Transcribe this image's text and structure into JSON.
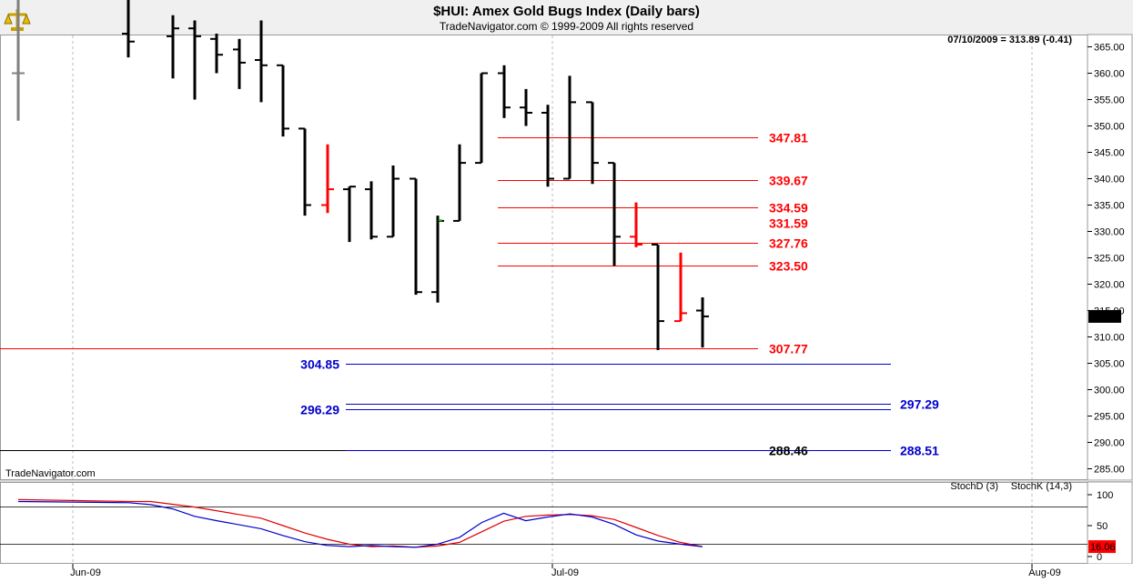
{
  "header": {
    "title": "$HUI:  Amex Gold Bugs Index  (Daily bars)",
    "subtitle": "TradeNavigator.com © 1999-2009 All rights reserved"
  },
  "chart_data": [
    {
      "type": "bar",
      "subtype": "ohlc",
      "title": "$HUI:  Amex Gold Bugs Index  (Daily bars)",
      "last_quote": "07/10/2009 = 313.89 (-0.41)",
      "last_value_label": "313.89",
      "watermark": "TradeNavigator.com",
      "ylim": [
        283,
        370
      ],
      "y_ticks": [
        "285.00",
        "290.00",
        "295.00",
        "300.00",
        "305.00",
        "310.00",
        "315.00",
        "320.00",
        "325.00",
        "330.00",
        "335.00",
        "340.00",
        "345.00",
        "350.00",
        "355.00",
        "360.00",
        "365.00"
      ],
      "x_tick_labels": [
        "Jun-09",
        "Jul-09",
        "Aug-09"
      ],
      "grid": "vertical dashed at month starts",
      "bars": [
        {
          "slot": 0,
          "o": 360.0,
          "h": 375.0,
          "l": 351.0,
          "c": 360.0,
          "color": "#808080"
        },
        {
          "slot": 5,
          "o": 367.5,
          "h": 375.0,
          "l": 363.0,
          "c": 366.0,
          "color": "#000000"
        },
        {
          "slot": 7,
          "o": 367.0,
          "h": 371.0,
          "l": 359.0,
          "c": 368.5,
          "color": "#000000"
        },
        {
          "slot": 8,
          "o": 368.5,
          "h": 370.0,
          "l": 355.0,
          "c": 367.0,
          "color": "#000000"
        },
        {
          "slot": 9,
          "o": 366.5,
          "h": 367.5,
          "l": 360.0,
          "c": 363.5,
          "color": "#000000"
        },
        {
          "slot": 10,
          "o": 364.5,
          "h": 366.5,
          "l": 357.0,
          "c": 362.0,
          "color": "#000000"
        },
        {
          "slot": 11,
          "o": 362.5,
          "h": 370.0,
          "l": 354.5,
          "c": 361.5,
          "color": "#000000"
        },
        {
          "slot": 12,
          "o": 361.5,
          "h": 361.5,
          "l": 348.0,
          "c": 349.5,
          "color": "#000000"
        },
        {
          "slot": 13,
          "o": 349.5,
          "h": 349.5,
          "l": 333.0,
          "c": 335.0,
          "color": "#000000"
        },
        {
          "slot": 14,
          "o": 335.0,
          "h": 346.5,
          "l": 333.5,
          "c": 338.0,
          "color": "#ff0000"
        },
        {
          "slot": 15,
          "o": 338.0,
          "h": 338.5,
          "l": 328.0,
          "c": 338.5,
          "color": "#000000"
        },
        {
          "slot": 16,
          "o": 338.0,
          "h": 339.5,
          "l": 328.5,
          "c": 329.0,
          "color": "#000000"
        },
        {
          "slot": 17,
          "o": 329.0,
          "h": 342.5,
          "l": 329.0,
          "c": 340.0,
          "color": "#000000"
        },
        {
          "slot": 18,
          "o": 340.0,
          "h": 340.0,
          "l": 318.0,
          "c": 318.5,
          "color": "#000000"
        },
        {
          "slot": 19,
          "o": 318.5,
          "h": 333.0,
          "l": 316.5,
          "c": 332.0,
          "color": "#000000"
        },
        {
          "slot": 20,
          "o": 332.0,
          "h": 346.5,
          "l": 332.0,
          "c": 343.0,
          "color": "#000000"
        },
        {
          "slot": 21,
          "o": 343.0,
          "h": 360.0,
          "l": 343.0,
          "c": 360.0,
          "color": "#000000"
        },
        {
          "slot": 22,
          "o": 360.0,
          "h": 361.5,
          "l": 351.5,
          "c": 353.5,
          "color": "#000000"
        },
        {
          "slot": 23,
          "o": 353.5,
          "h": 357.0,
          "l": 350.0,
          "c": 352.5,
          "color": "#000000"
        },
        {
          "slot": 24,
          "o": 352.5,
          "h": 354.0,
          "l": 338.5,
          "c": 340.0,
          "color": "#000000"
        },
        {
          "slot": 25,
          "o": 340.0,
          "h": 359.5,
          "l": 340.0,
          "c": 354.5,
          "color": "#000000"
        },
        {
          "slot": 26,
          "o": 354.5,
          "h": 354.5,
          "l": 339.0,
          "c": 343.0,
          "color": "#000000"
        },
        {
          "slot": 27,
          "o": 343.0,
          "h": 343.0,
          "l": 323.5,
          "c": 329.0,
          "color": "#000000"
        },
        {
          "slot": 28,
          "o": 329.0,
          "h": 335.5,
          "l": 327.0,
          "c": 327.5,
          "color": "#ff0000"
        },
        {
          "slot": 29,
          "o": 327.5,
          "h": 327.5,
          "l": 307.5,
          "c": 313.0,
          "color": "#000000"
        },
        {
          "slot": 30,
          "o": 313.0,
          "h": 326.0,
          "l": 313.0,
          "c": 314.5,
          "color": "#ff0000"
        },
        {
          "slot": 31,
          "o": 315.0,
          "h": 317.5,
          "l": 308.0,
          "c": 313.89,
          "color": "#000000"
        }
      ],
      "levels": [
        {
          "label": "347.81",
          "value": 347.81,
          "color": "#ff0000",
          "side": "right"
        },
        {
          "label": "339.67",
          "value": 339.67,
          "color": "#ff0000",
          "side": "right"
        },
        {
          "label": "334.59",
          "value": 334.59,
          "color": "#ff0000",
          "side": "right"
        },
        {
          "label": "331.59",
          "value": 331.59,
          "color": "#ff0000",
          "side": "right",
          "no_line": true
        },
        {
          "label": "327.76",
          "value": 327.76,
          "color": "#ff0000",
          "side": "right"
        },
        {
          "label": "323.50",
          "value": 323.5,
          "color": "#ff0000",
          "side": "right"
        },
        {
          "label": "307.77",
          "value": 307.77,
          "color": "#ff0000",
          "side": "right",
          "full": true
        },
        {
          "label": "304.85",
          "value": 304.85,
          "color": "#0000cc",
          "side": "left"
        },
        {
          "label": "297.29",
          "value": 297.29,
          "color": "#0000cc",
          "side": "right2"
        },
        {
          "label": "296.29",
          "value": 296.29,
          "color": "#0000cc",
          "side": "left"
        },
        {
          "label": "288.46",
          "value": 288.46,
          "color": "#000000",
          "side": "right"
        },
        {
          "label": "288.51",
          "value": 288.51,
          "color": "#0000cc",
          "side": "right2"
        }
      ]
    },
    {
      "type": "line",
      "title": "Stochastic",
      "ylim": [
        -5,
        120
      ],
      "y_ticks": [
        "100",
        "50",
        "0"
      ],
      "levels": [
        80,
        20
      ],
      "last_value_label": "16.06",
      "series": [
        {
          "name": "StochD (3)",
          "color": "#e00000",
          "values": [
            [
              0,
              92
            ],
            [
              5,
              89
            ],
            [
              6,
              89
            ],
            [
              8,
              80
            ],
            [
              10,
              68
            ],
            [
              11,
              62
            ],
            [
              12,
              50
            ],
            [
              13,
              38
            ],
            [
              14,
              28
            ],
            [
              15,
              20
            ],
            [
              16,
              16
            ],
            [
              17,
              17
            ],
            [
              18,
              15
            ],
            [
              19,
              17
            ],
            [
              20,
              23
            ],
            [
              21,
              40
            ],
            [
              22,
              57
            ],
            [
              23,
              65
            ],
            [
              24,
              67
            ],
            [
              25,
              68
            ],
            [
              26,
              66
            ],
            [
              27,
              60
            ],
            [
              28,
              47
            ],
            [
              29,
              34
            ],
            [
              30,
              23
            ],
            [
              31,
              16
            ]
          ]
        },
        {
          "name": "StochK (14,3)",
          "color": "#0000cc",
          "values": [
            [
              0,
              89
            ],
            [
              5,
              87
            ],
            [
              6,
              84
            ],
            [
              7,
              77
            ],
            [
              8,
              65
            ],
            [
              9,
              58
            ],
            [
              11,
              45
            ],
            [
              12,
              34
            ],
            [
              13,
              24
            ],
            [
              14,
              18
            ],
            [
              15,
              16
            ],
            [
              16,
              18
            ],
            [
              17,
              16
            ],
            [
              18,
              15
            ],
            [
              19,
              20
            ],
            [
              20,
              31
            ],
            [
              21,
              55
            ],
            [
              22,
              70
            ],
            [
              23,
              58
            ],
            [
              24,
              64
            ],
            [
              25,
              69
            ],
            [
              26,
              64
            ],
            [
              27,
              52
            ],
            [
              28,
              35
            ],
            [
              29,
              25
            ],
            [
              30,
              20
            ],
            [
              31,
              16
            ]
          ]
        }
      ]
    }
  ]
}
